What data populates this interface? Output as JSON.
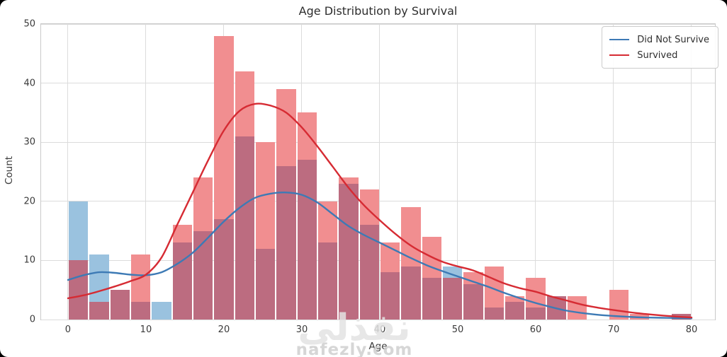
{
  "watermark": {
    "arabic": "نفذلي",
    "latin": "nafezly.com"
  },
  "chart_data": {
    "type": "histogram",
    "title": "Age Distribution by Survival",
    "xlabel": "Age",
    "ylabel": "Count",
    "xlim": [
      -3.45,
      83.0
    ],
    "ylim": [
      0,
      50
    ],
    "x_ticks": [
      0,
      10,
      20,
      30,
      40,
      50,
      60,
      70,
      80
    ],
    "y_ticks": [
      0,
      10,
      20,
      30,
      40,
      50
    ],
    "grid": true,
    "bin_start": 0,
    "bin_width": 2.6667,
    "bin_edges": [
      0,
      2.67,
      5.33,
      8,
      10.67,
      13.33,
      16,
      18.67,
      21.33,
      24,
      26.67,
      29.33,
      32,
      34.67,
      37.33,
      40,
      42.67,
      45.33,
      48,
      50.67,
      53.33,
      56,
      58.67,
      61.33,
      64,
      66.67,
      69.33,
      72,
      74.67,
      77.33,
      80
    ],
    "series": [
      {
        "name": "Did Not Survive",
        "bar_color": "#9ac2df",
        "line_color": "#3d7ab5",
        "counts": [
          20,
          11,
          5,
          3,
          3,
          13,
          15,
          17,
          31,
          12,
          26,
          27,
          13,
          23,
          16,
          8,
          9,
          7,
          9,
          6,
          2,
          3,
          2,
          4,
          0,
          0,
          0,
          0,
          0,
          1
        ]
      },
      {
        "name": "Survived",
        "bar_color": "#f18e90",
        "line_color": "#d62b33",
        "counts": [
          10,
          3,
          5,
          11,
          0,
          16,
          24,
          48,
          42,
          30,
          39,
          35,
          20,
          24,
          22,
          13,
          19,
          14,
          7,
          8,
          9,
          4,
          7,
          4,
          4,
          0,
          5,
          1,
          0,
          1
        ]
      }
    ],
    "overlap_color": "#bc6c80",
    "kde": {
      "did_not_survive": [
        [
          0,
          6.7
        ],
        [
          2,
          7.5
        ],
        [
          4,
          8.0
        ],
        [
          6,
          7.9
        ],
        [
          8,
          7.6
        ],
        [
          10,
          7.5
        ],
        [
          12,
          8.0
        ],
        [
          14,
          9.4
        ],
        [
          16,
          11.3
        ],
        [
          18,
          13.9
        ],
        [
          20,
          16.6
        ],
        [
          22,
          18.9
        ],
        [
          24,
          20.6
        ],
        [
          26,
          21.3
        ],
        [
          28,
          21.5
        ],
        [
          30,
          21.1
        ],
        [
          32,
          19.8
        ],
        [
          34,
          17.8
        ],
        [
          36,
          15.8
        ],
        [
          38,
          14.3
        ],
        [
          40,
          13.0
        ],
        [
          42,
          11.7
        ],
        [
          44,
          10.4
        ],
        [
          46,
          9.2
        ],
        [
          48,
          8.2
        ],
        [
          50,
          7.3
        ],
        [
          52,
          6.4
        ],
        [
          54,
          5.5
        ],
        [
          56,
          4.5
        ],
        [
          58,
          3.6
        ],
        [
          60,
          2.8
        ],
        [
          62,
          2.1
        ],
        [
          64,
          1.5
        ],
        [
          66,
          1.1
        ],
        [
          68,
          0.8
        ],
        [
          70,
          0.6
        ],
        [
          72,
          0.45
        ],
        [
          74,
          0.35
        ],
        [
          76,
          0.3
        ],
        [
          78,
          0.25
        ],
        [
          80,
          0.2
        ]
      ],
      "survived": [
        [
          0,
          3.6
        ],
        [
          2,
          4.1
        ],
        [
          4,
          4.8
        ],
        [
          6,
          5.6
        ],
        [
          8,
          6.5
        ],
        [
          10,
          7.6
        ],
        [
          12,
          10.5
        ],
        [
          14,
          16.0
        ],
        [
          16,
          21.5
        ],
        [
          18,
          27.0
        ],
        [
          20,
          32.0
        ],
        [
          22,
          35.3
        ],
        [
          24,
          36.5
        ],
        [
          26,
          36.2
        ],
        [
          28,
          35.0
        ],
        [
          30,
          32.5
        ],
        [
          32,
          29.3
        ],
        [
          34,
          25.8
        ],
        [
          36,
          22.3
        ],
        [
          38,
          19.3
        ],
        [
          40,
          16.8
        ],
        [
          42,
          14.5
        ],
        [
          44,
          12.5
        ],
        [
          46,
          11.0
        ],
        [
          48,
          9.8
        ],
        [
          50,
          9.0
        ],
        [
          52,
          8.3
        ],
        [
          54,
          7.2
        ],
        [
          56,
          6.1
        ],
        [
          58,
          5.3
        ],
        [
          60,
          4.7
        ],
        [
          62,
          3.9
        ],
        [
          64,
          3.2
        ],
        [
          66,
          2.5
        ],
        [
          68,
          2.0
        ],
        [
          70,
          1.6
        ],
        [
          72,
          1.25
        ],
        [
          74,
          0.95
        ],
        [
          76,
          0.7
        ],
        [
          78,
          0.5
        ],
        [
          80,
          0.35
        ]
      ]
    },
    "legend": {
      "position": "upper right",
      "entries": [
        "Did Not Survive",
        "Survived"
      ]
    },
    "colors": {
      "grid": "#dcdcdc",
      "spine": "#c9c9c9",
      "tick_text": "#3a3a3a",
      "title_text": "#2e2e2e"
    }
  }
}
